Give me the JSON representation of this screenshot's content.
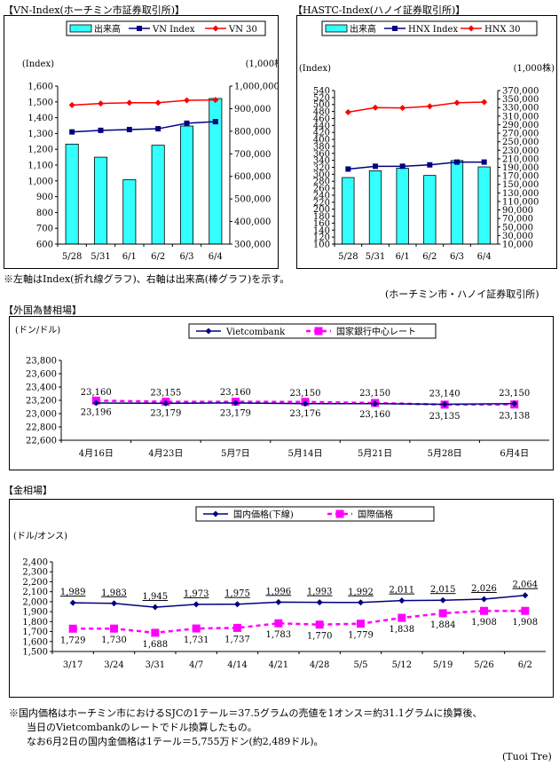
{
  "vn": {
    "title": "【VN-Index(ホーチミン市証券取引所)】",
    "chart_data": {
      "type": "bar+line",
      "categories": [
        "5/28",
        "5/31",
        "6/1",
        "6/2",
        "6/3",
        "6/4"
      ],
      "y_left_label": "(Index)",
      "y_right_label": "(1,000株)",
      "y_left_ticks": [
        "600",
        "700",
        "800",
        "900",
        "1,000",
        "1,100",
        "1,200",
        "1,300",
        "1,400",
        "1,500",
        "1,600"
      ],
      "y_right_ticks": [
        "300,000",
        "400,000",
        "500,000",
        "600,000",
        "700,000",
        "800,000",
        "900,000",
        "1,000,000"
      ],
      "ylim_left": [
        600,
        1600
      ],
      "ylim_right": [
        300000,
        1000000
      ],
      "series": [
        {
          "name": "出来高",
          "type": "bar",
          "axis": "right",
          "values": [
            743000,
            685000,
            585000,
            738000,
            823000,
            945000
          ]
        },
        {
          "name": "VN Index",
          "type": "line",
          "axis": "left",
          "values": [
            1310,
            1320,
            1325,
            1330,
            1365,
            1375
          ]
        },
        {
          "name": "VN 30",
          "type": "line",
          "axis": "left",
          "values": [
            1480,
            1490,
            1495,
            1495,
            1510,
            1512
          ]
        }
      ]
    }
  },
  "hnx": {
    "title": "【HASTC-Index(ハノイ証券取引所)】",
    "chart_data": {
      "type": "bar+line",
      "categories": [
        "5/28",
        "5/31",
        "6/1",
        "6/2",
        "6/3",
        "6/4"
      ],
      "y_left_label": "(Index)",
      "y_right_label": "(1,000株)",
      "y_left_ticks": [
        "100",
        "120",
        "140",
        "160",
        "180",
        "200",
        "220",
        "240",
        "260",
        "280",
        "300",
        "320",
        "340",
        "360",
        "380",
        "400",
        "420",
        "440",
        "460",
        "480",
        "500",
        "520",
        "540"
      ],
      "y_right_ticks": [
        "10,000",
        "30,000",
        "50,000",
        "70,000",
        "90,000",
        "110,000",
        "130,000",
        "150,000",
        "170,000",
        "190,000",
        "210,000",
        "230,000",
        "250,000",
        "270,000",
        "290,000",
        "310,000",
        "330,000",
        "350,000",
        "370,000"
      ],
      "ylim_left": [
        100,
        540
      ],
      "ylim_right": [
        10000,
        370000
      ],
      "series": [
        {
          "name": "出来高",
          "type": "bar",
          "axis": "right",
          "values": [
            166000,
            182000,
            188000,
            171000,
            206000,
            191000
          ]
        },
        {
          "name": "HNX Index",
          "type": "line",
          "axis": "left",
          "values": [
            315,
            323,
            323,
            327,
            335,
            335
          ]
        },
        {
          "name": "HNX 30",
          "type": "line",
          "axis": "left",
          "values": [
            478,
            491,
            490,
            495,
            505,
            507
          ]
        }
      ]
    }
  },
  "stock_note": "※左軸はIndex(折れ線グラフ)、右軸は出来高(棒グラフ)を示す。",
  "stock_source": "(ホーチミン市・ハノイ証券取引所)",
  "fx": {
    "title": "【外国為替相場】",
    "chart_data": {
      "type": "line",
      "y_label": "(ドン/ドル)",
      "categories": [
        "4月16日",
        "4月23日",
        "5月7日",
        "5月14日",
        "5月21日",
        "5月28日",
        "6月4日"
      ],
      "y_ticks": [
        "22,600",
        "22,800",
        "23,000",
        "23,200",
        "23,400",
        "23,600",
        "23,800"
      ],
      "ylim": [
        22600,
        23800
      ],
      "series": [
        {
          "name": "Vietcombank",
          "values": [
            23160,
            23155,
            23160,
            23150,
            23150,
            23140,
            23150
          ],
          "labels": [
            "23,160",
            "23,155",
            "23,160",
            "23,150",
            "23,150",
            "23,140",
            "23,150"
          ]
        },
        {
          "name": "国家銀行中心レート",
          "values": [
            23196,
            23179,
            23179,
            23176,
            23160,
            23135,
            23138
          ],
          "labels": [
            "23,196",
            "23,179",
            "23,179",
            "23,176",
            "23,160",
            "23,135",
            "23,138"
          ]
        }
      ]
    }
  },
  "gold": {
    "title": "【金相場】",
    "chart_data": {
      "type": "line",
      "y_label": "(ドル/オンス)",
      "categories": [
        "3/17",
        "3/24",
        "3/31",
        "4/7",
        "4/14",
        "4/21",
        "4/28",
        "5/5",
        "5/12",
        "5/19",
        "5/26",
        "6/2"
      ],
      "y_ticks": [
        "1,500",
        "1,600",
        "1,700",
        "1,800",
        "1,900",
        "2,000",
        "2,100",
        "2,200",
        "2,300",
        "2,400"
      ],
      "ylim": [
        1500,
        2400
      ],
      "series": [
        {
          "name": "国内価格(下線)",
          "values": [
            1989,
            1983,
            1945,
            1973,
            1975,
            1996,
            1993,
            1992,
            2011,
            2015,
            2026,
            2064
          ],
          "labels": [
            "1,989",
            "1,983",
            "1,945",
            "1,973",
            "1,975",
            "1,996",
            "1,993",
            "1,992",
            "2,011",
            "2,015",
            "2,026",
            "2,064"
          ]
        },
        {
          "name": "国際価格",
          "values": [
            1729,
            1730,
            1688,
            1731,
            1737,
            1783,
            1770,
            1779,
            1838,
            1884,
            1908,
            1908
          ],
          "labels": [
            "1,729",
            "1,730",
            "1,688",
            "1,731",
            "1,737",
            "1,783",
            "1,770",
            "1,779",
            "1,838",
            "1,884",
            "1,908",
            "1,908"
          ]
        }
      ]
    }
  },
  "gold_notes": [
    "※国内価格はホーチミン市におけるSJCの1テール＝37.5グラムの売値を1オンス＝約31.1グラムに換算後、",
    "当日のVietcombankのレートでドル換算したもの。",
    "なお6月2日の国内金価格は1テール＝5,755万ドン(約2,489ドル)。"
  ],
  "source": "(Tuoi Tre)",
  "colors": {
    "bar": "#33ffff",
    "navy": "#000080",
    "red": "#ff0000",
    "magenta": "#ff00ff"
  }
}
